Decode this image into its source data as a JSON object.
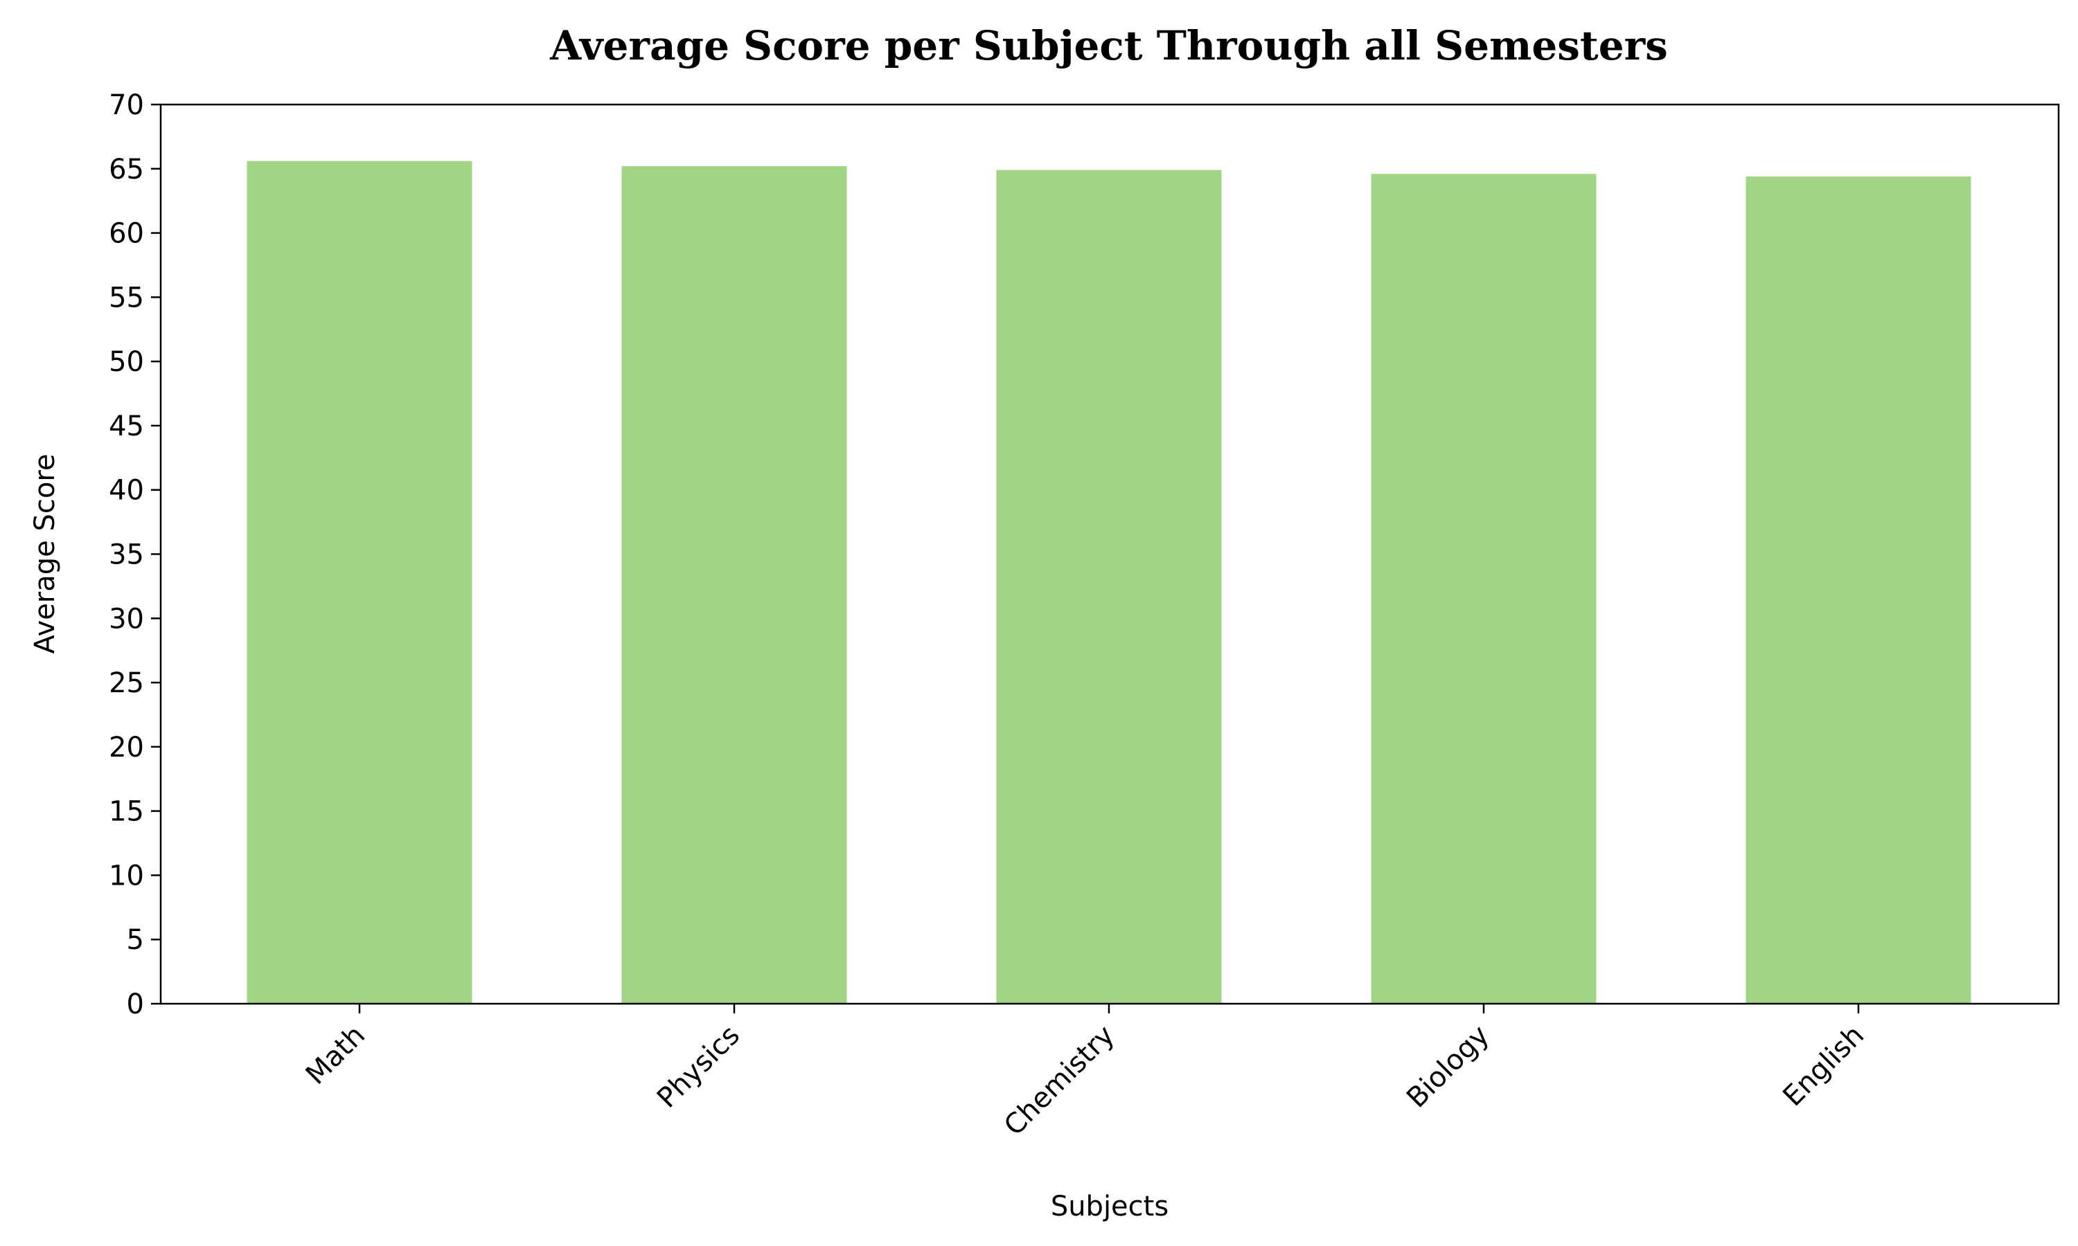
{
  "chart_data": {
    "type": "bar",
    "title": "Average Score per Subject Through all Semesters",
    "xlabel": "Subjects",
    "ylabel": "Average Score",
    "categories": [
      "Math",
      "Physics",
      "Chemistry",
      "Biology",
      "English"
    ],
    "values": [
      65.6,
      65.2,
      64.9,
      64.6,
      64.4
    ],
    "ylim": [
      0,
      70
    ],
    "yticks": [
      0,
      5,
      10,
      15,
      20,
      25,
      30,
      35,
      40,
      45,
      50,
      55,
      60,
      65,
      70
    ],
    "ytick_labels": [
      "0",
      "5",
      "10",
      "15",
      "20",
      "25",
      "30",
      "35",
      "40",
      "45",
      "50",
      "55",
      "60",
      "65",
      "70"
    ],
    "bar_color": "#a0d585",
    "grid": false,
    "xtick_rotation": "45 degrees"
  }
}
